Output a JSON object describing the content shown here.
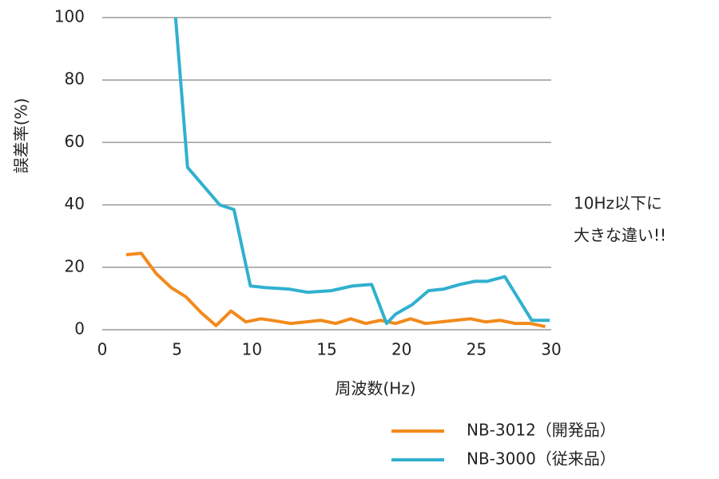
{
  "chart_data": {
    "type": "line",
    "xlabel": "周波数(Hz)",
    "ylabel": "誤差率(%)",
    "annotation": [
      "10Hz以下に",
      "大きな違い!!"
    ],
    "xlim": [
      0,
      30
    ],
    "xticks": [
      0,
      5,
      10,
      15,
      20,
      25,
      30
    ],
    "ylim": [
      0,
      100
    ],
    "yticks": [
      0,
      20,
      40,
      60,
      80,
      100
    ],
    "grid": true,
    "series": [
      {
        "name": "NB-3012（開発品）",
        "color": "#f28a1c",
        "x": [
          1.6,
          2.6,
          3.6,
          4.6,
          5.6,
          6.6,
          7.6,
          8.6,
          9.6,
          10.6,
          11.6,
          12.6,
          13.6,
          14.6,
          15.6,
          16.6,
          17.6,
          18.6,
          19.6,
          20.6,
          21.6,
          22.6,
          23.6,
          24.6,
          25.6,
          26.6,
          27.6,
          28.6,
          29.6
        ],
        "values": [
          24,
          24.5,
          18,
          13.5,
          10.5,
          5.5,
          1.3,
          6,
          2.5,
          3.5,
          2.8,
          2,
          2.5,
          3,
          2,
          3.5,
          2,
          3,
          2,
          3.5,
          2,
          2.5,
          3,
          3.5,
          2.5,
          3,
          2,
          2,
          1
        ]
      },
      {
        "name": "NB-3000（従来品）",
        "color": "#31b0cf",
        "x": [
          4.9,
          5.7,
          7.85,
          8.8,
          9.9,
          10.9,
          12.5,
          13.7,
          15.3,
          16.7,
          18,
          19,
          19.6,
          20.7,
          21.8,
          22.8,
          23.9,
          24.9,
          25.7,
          26.9,
          28.7,
          29.9
        ],
        "values": [
          100,
          52,
          40,
          38.5,
          14,
          13.5,
          13,
          12,
          12.5,
          14,
          14.5,
          2,
          5,
          8,
          12.5,
          13,
          14.5,
          15.5,
          15.5,
          17,
          3,
          3
        ]
      }
    ]
  }
}
